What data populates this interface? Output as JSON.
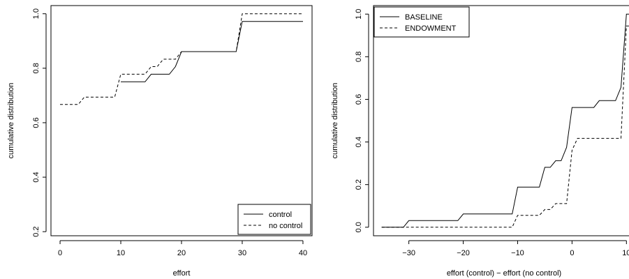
{
  "chart_data": [
    {
      "type": "line",
      "subtype": "step",
      "xlabel": "effort",
      "ylabel": "cumulative distribution",
      "xlim": [
        -1.5,
        41.5
      ],
      "ylim": [
        0.185,
        1.03
      ],
      "xticks": [
        0,
        10,
        20,
        30,
        40
      ],
      "yticks": [
        0.2,
        0.4,
        0.6,
        0.8,
        1.0
      ],
      "ytick_labels": [
        "0.2",
        "0.4",
        "0.6",
        "0.8",
        "1.0"
      ],
      "legend": {
        "position": "bottom-right",
        "entries": [
          "control",
          "no control"
        ]
      },
      "series": [
        {
          "name": "control",
          "style": "solid",
          "points": [
            [
              10,
              0.75
            ],
            [
              14,
              0.75
            ],
            [
              15,
              0.778
            ],
            [
              18,
              0.778
            ],
            [
              19,
              0.806
            ],
            [
              20,
              0.861
            ],
            [
              29,
              0.861
            ],
            [
              30,
              0.972
            ],
            [
              40,
              0.972
            ]
          ]
        },
        {
          "name": "no control",
          "style": "dashed",
          "points": [
            [
              0,
              0.667
            ],
            [
              3,
              0.667
            ],
            [
              4,
              0.694
            ],
            [
              9,
              0.694
            ],
            [
              10,
              0.778
            ],
            [
              14,
              0.778
            ],
            [
              15,
              0.806
            ],
            [
              16,
              0.806
            ],
            [
              17,
              0.833
            ],
            [
              19,
              0.833
            ],
            [
              20,
              0.861
            ],
            [
              29,
              0.861
            ],
            [
              30,
              1.0
            ],
            [
              40,
              1.0
            ]
          ]
        }
      ]
    },
    {
      "type": "line",
      "subtype": "step",
      "xlabel": "effort (control) − effort (no control)",
      "ylabel": "cumulative distribution",
      "xlim": [
        -36.5,
        11.5
      ],
      "ylim": [
        -0.04,
        1.04
      ],
      "xticks": [
        -30,
        -20,
        -10,
        0,
        10
      ],
      "xtick_labels": [
        "−30",
        "−20",
        "−10",
        "0",
        "10"
      ],
      "yticks": [
        0.0,
        0.2,
        0.4,
        0.6,
        0.8,
        1.0
      ],
      "ytick_labels": [
        "0.0",
        "0.2",
        "0.4",
        "0.6",
        "0.8",
        "1.0"
      ],
      "legend": {
        "position": "top-left",
        "entries": [
          "BASELINE",
          "ENDOWMENT"
        ]
      },
      "series": [
        {
          "name": "BASELINE",
          "style": "solid",
          "points": [
            [
              -35,
              0.0
            ],
            [
              -31,
              0.0
            ],
            [
              -30,
              0.031
            ],
            [
              -21,
              0.031
            ],
            [
              -20,
              0.062
            ],
            [
              -11,
              0.062
            ],
            [
              -10,
              0.188
            ],
            [
              -6,
              0.188
            ],
            [
              -5,
              0.281
            ],
            [
              -4,
              0.281
            ],
            [
              -3,
              0.312
            ],
            [
              -2,
              0.312
            ],
            [
              -1,
              0.375
            ],
            [
              0,
              0.562
            ],
            [
              4,
              0.562
            ],
            [
              5,
              0.594
            ],
            [
              8,
              0.594
            ],
            [
              9,
              0.656
            ],
            [
              10,
              1.0
            ],
            [
              11,
              1.0
            ]
          ]
        },
        {
          "name": "ENDOWMENT",
          "style": "dashed",
          "points": [
            [
              -35,
              0.0
            ],
            [
              -11,
              0.0
            ],
            [
              -10,
              0.056
            ],
            [
              -6,
              0.056
            ],
            [
              -5,
              0.083
            ],
            [
              -4,
              0.083
            ],
            [
              -3,
              0.111
            ],
            [
              -1,
              0.111
            ],
            [
              0,
              0.361
            ],
            [
              1,
              0.417
            ],
            [
              9,
              0.417
            ],
            [
              10,
              0.944
            ],
            [
              11,
              0.944
            ]
          ]
        }
      ]
    }
  ]
}
